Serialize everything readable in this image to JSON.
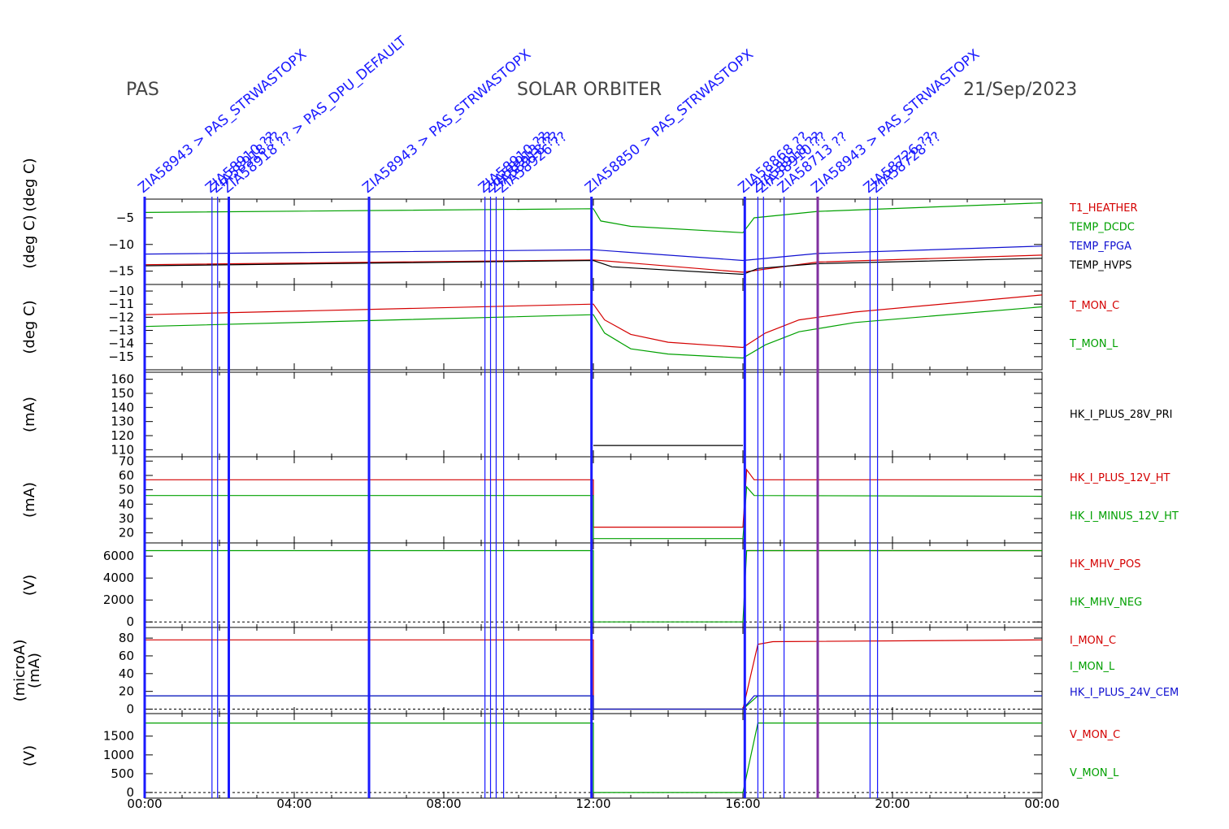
{
  "header": {
    "left": "PAS",
    "center": "SOLAR ORBITER",
    "right": "21/Sep/2023"
  },
  "colors": {
    "red": "#d40000",
    "green": "#00a000",
    "blue": "#1010d0",
    "black": "#000000",
    "event": "#1a1aff",
    "brown": "#806010"
  },
  "chart_data": {
    "type": "line",
    "x_axis": {
      "range_hours": [
        0,
        24
      ],
      "tick_labels": [
        "00:00",
        "04:00",
        "08:00",
        "12:00",
        "16:00",
        "20:00",
        "00:00"
      ]
    },
    "events": [
      {
        "t": 0.0,
        "label": "ZIA58943 > PAS_STRWASTOPX",
        "color": "#1a1aff",
        "thick": true
      },
      {
        "t": 1.8,
        "label": "ZIA58910 ??",
        "color": "#1a1aff",
        "thick": false
      },
      {
        "t": 1.95,
        "label": "ZIA58918 ??",
        "color": "#1a1aff",
        "thick": false
      },
      {
        "t": 2.25,
        "label": "ZIA58918 ?? > PAS_DPU_DEFAULT",
        "color": "#1a1aff",
        "thick": true
      },
      {
        "t": 6.0,
        "label": "ZIA58943 > PAS_STRWASTOPX",
        "color": "#1a1aff",
        "thick": true
      },
      {
        "t": 9.1,
        "label": "ZIA58910 ??",
        "color": "#1a1aff",
        "thick": false
      },
      {
        "t": 9.25,
        "label": "ZIA58913 ??",
        "color": "#1a1aff",
        "thick": false
      },
      {
        "t": 9.4,
        "label": "ZIA58918 ??",
        "color": "#1a1aff",
        "thick": false
      },
      {
        "t": 9.6,
        "label": "ZIA58926 ??",
        "color": "#1a1aff",
        "thick": false
      },
      {
        "t": 11.95,
        "label": "ZIA58850 > PAS_STRWASTOPX",
        "color": "#1a1aff",
        "thick": true
      },
      {
        "t": 16.05,
        "label": "ZIA58868 ??",
        "color": "#1a1aff",
        "thick": true
      },
      {
        "t": 16.4,
        "label": "ZIA58918 ??",
        "color": "#1a1aff",
        "thick": false
      },
      {
        "t": 16.55,
        "label": "ZIA58910 ??",
        "color": "#1a1aff",
        "thick": false
      },
      {
        "t": 17.1,
        "label": "ZIA58713 ??",
        "color": "#1a1aff",
        "thick": false
      },
      {
        "t": 18.0,
        "label": "ZIA58943 > PAS_STRWASTOPX",
        "color": "#8030a0",
        "thick": true
      },
      {
        "t": 19.4,
        "label": "ZIA58726 ??",
        "color": "#1a1aff",
        "thick": false
      },
      {
        "t": 19.6,
        "label": "ZIA58728 ??",
        "color": "#1a1aff",
        "thick": false
      }
    ],
    "panels": [
      {
        "ylabel": "(deg C)",
        "ylim": [
          -17.5,
          -1.5
        ],
        "yticks": [
          -5,
          -10,
          -15
        ],
        "ytick_labels": [
          "−5",
          "−10",
          "−15"
        ],
        "zero_line": false,
        "series": [
          {
            "name": "T1_HEATHER",
            "color": "#d40000",
            "points": [
              [
                0,
                -13.8
              ],
              [
                12,
                -12.9
              ],
              [
                16,
                -15.2
              ],
              [
                18,
                -13.3
              ],
              [
                24,
                -12.0
              ]
            ]
          },
          {
            "name": "TEMP_DCDC",
            "color": "#00a000",
            "points": [
              [
                0,
                -4.0
              ],
              [
                12,
                -3.3
              ],
              [
                12.2,
                -5.6
              ],
              [
                13,
                -6.6
              ],
              [
                16,
                -7.8
              ],
              [
                16.3,
                -5.0
              ],
              [
                18,
                -3.8
              ],
              [
                24,
                -2.2
              ]
            ]
          },
          {
            "name": "TEMP_FPGA",
            "color": "#1010d0",
            "points": [
              [
                0,
                -11.8
              ],
              [
                12,
                -11.0
              ],
              [
                16,
                -13.0
              ],
              [
                18,
                -11.7
              ],
              [
                24,
                -10.3
              ]
            ]
          },
          {
            "name": "TEMP_HVPS",
            "color": "#000000",
            "points": [
              [
                0,
                -14.0
              ],
              [
                12,
                -13.0
              ],
              [
                12.5,
                -14.2
              ],
              [
                16,
                -15.6
              ],
              [
                16.4,
                -14.5
              ],
              [
                18,
                -13.6
              ],
              [
                24,
                -12.6
              ]
            ]
          }
        ]
      },
      {
        "ylabel": "(deg C)",
        "ylim": [
          -16,
          -9.5
        ],
        "yticks": [
          -10,
          -11,
          -12,
          -13,
          -14,
          -15
        ],
        "ytick_labels": [
          "−10",
          "−11",
          "−12",
          "−13",
          "−14",
          "−15"
        ],
        "zero_line": false,
        "series": [
          {
            "name": "T_MON_C",
            "color": "#d40000",
            "points": [
              [
                0,
                -11.8
              ],
              [
                12,
                -11.0
              ],
              [
                12.3,
                -12.2
              ],
              [
                13,
                -13.3
              ],
              [
                14,
                -13.9
              ],
              [
                16,
                -14.3
              ],
              [
                16.6,
                -13.2
              ],
              [
                17.5,
                -12.2
              ],
              [
                19,
                -11.6
              ],
              [
                24,
                -10.3
              ]
            ]
          },
          {
            "name": "T_MON_L",
            "color": "#00a000",
            "points": [
              [
                0,
                -12.7
              ],
              [
                12,
                -11.8
              ],
              [
                12.3,
                -13.2
              ],
              [
                13,
                -14.4
              ],
              [
                14,
                -14.8
              ],
              [
                16,
                -15.1
              ],
              [
                16.6,
                -14.1
              ],
              [
                17.5,
                -13.1
              ],
              [
                19,
                -12.4
              ],
              [
                24,
                -11.2
              ]
            ]
          }
        ]
      },
      {
        "ylabel": "(mA)",
        "ylim": [
          105,
          165
        ],
        "yticks": [
          110,
          120,
          130,
          140,
          150,
          160
        ],
        "ytick_labels": [
          "110",
          "120",
          "130",
          "140",
          "150",
          "160"
        ],
        "zero_line": false,
        "series": [
          {
            "name": "HK_I_PLUS_28V_PRI",
            "color": "#000000",
            "points": [
              [
                12,
                113
              ],
              [
                16,
                113
              ]
            ]
          }
        ]
      },
      {
        "ylabel": "(mA)",
        "ylim": [
          13,
          73
        ],
        "yticks": [
          20,
          30,
          40,
          50,
          60,
          70
        ],
        "ytick_labels": [
          "20",
          "30",
          "40",
          "50",
          "60",
          "70"
        ],
        "zero_line": false,
        "series": [
          {
            "name": "HK_I_PLUS_12V_HT",
            "color": "#d40000",
            "points": [
              [
                0,
                57
              ],
              [
                12,
                57
              ],
              [
                12,
                24
              ],
              [
                16,
                24
              ],
              [
                16.1,
                64
              ],
              [
                16.3,
                57
              ],
              [
                24,
                57
              ]
            ]
          },
          {
            "name": "HK_I_MINUS_12V_HT",
            "color": "#00a000",
            "points": [
              [
                0,
                46
              ],
              [
                12,
                46
              ],
              [
                12,
                16
              ],
              [
                16,
                16
              ],
              [
                16.1,
                52
              ],
              [
                16.3,
                46
              ],
              [
                24,
                45.5
              ]
            ]
          }
        ]
      },
      {
        "ylabel": "(V)",
        "ylim": [
          -500,
          7200
        ],
        "yticks": [
          0,
          2000,
          4000,
          6000
        ],
        "ytick_labels": [
          "0",
          "2000",
          "4000",
          "6000"
        ],
        "zero_line": true,
        "series": [
          {
            "name": "HK_MHV_POS",
            "color": "#d40000",
            "points": [
              [
                16.1,
                6500
              ],
              [
                24,
                6500
              ]
            ]
          },
          {
            "name": "HK_MHV_NEG",
            "color": "#00a000",
            "points": [
              [
                0,
                6500
              ],
              [
                12,
                6500
              ],
              [
                12,
                0
              ],
              [
                16,
                0
              ],
              [
                16.1,
                6500
              ],
              [
                24,
                6500
              ]
            ]
          }
        ]
      },
      {
        "ylabel": "(mA)",
        "ylabel2": "(microA)",
        "ylim": [
          -5,
          92
        ],
        "yticks": [
          0,
          20,
          40,
          60,
          80
        ],
        "ytick_labels": [
          "0",
          "20",
          "40",
          "60",
          "80"
        ],
        "zero_line": true,
        "series": [
          {
            "name": "I_MON_C",
            "color": "#d40000",
            "points": [
              [
                0,
                78
              ],
              [
                12,
                78
              ],
              [
                12,
                0
              ],
              [
                16,
                0
              ],
              [
                16.4,
                73
              ],
              [
                16.8,
                76
              ],
              [
                24,
                78
              ]
            ]
          },
          {
            "name": "I_MON_L",
            "color": "#00a000",
            "points": [
              [
                0,
                15
              ],
              [
                12,
                15
              ],
              [
                12,
                0
              ],
              [
                16,
                0
              ],
              [
                16.4,
                15
              ],
              [
                24,
                15
              ]
            ]
          },
          {
            "name": "HK_I_PLUS_24V_CEM",
            "color": "#1010d0",
            "points": [
              [
                0,
                15
              ],
              [
                12,
                15
              ],
              [
                12,
                0
              ],
              [
                16,
                0
              ],
              [
                16.3,
                15
              ],
              [
                24,
                15
              ]
            ]
          }
        ]
      },
      {
        "ylabel": "(V)",
        "ylim": [
          -150,
          2100
        ],
        "yticks": [
          0,
          500,
          1000,
          1500
        ],
        "ytick_labels": [
          "0",
          "500",
          "1000",
          "1500"
        ],
        "zero_line": true,
        "series": [
          {
            "name": "V_MON_C",
            "color": "#d40000",
            "points": []
          },
          {
            "name": "V_MON_L",
            "color": "#00a000",
            "points": [
              [
                0,
                1850
              ],
              [
                12,
                1850
              ],
              [
                12,
                0
              ],
              [
                16,
                0
              ],
              [
                16.4,
                1850
              ],
              [
                24,
                1850
              ]
            ]
          }
        ]
      }
    ]
  }
}
